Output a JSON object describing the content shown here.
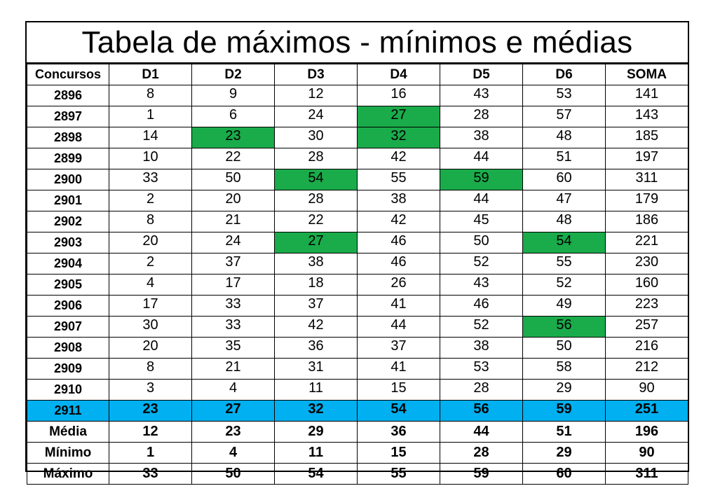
{
  "title": "Tabela de máximos - mínimos e médias",
  "colors": {
    "highlight_green": "#1aab4b",
    "current_row_blue": "#00b0f0"
  },
  "headers": [
    "Concursos",
    "D1",
    "D2",
    "D3",
    "D4",
    "D5",
    "D6",
    "SOMA"
  ],
  "rows": [
    {
      "concurso": "2896",
      "values": [
        "8",
        "9",
        "12",
        "16",
        "43",
        "53",
        "141"
      ],
      "highlight": []
    },
    {
      "concurso": "2897",
      "values": [
        "1",
        "6",
        "24",
        "27",
        "28",
        "57",
        "143"
      ],
      "highlight": [
        3
      ]
    },
    {
      "concurso": "2898",
      "values": [
        "14",
        "23",
        "30",
        "32",
        "38",
        "48",
        "185"
      ],
      "highlight": [
        1,
        3
      ]
    },
    {
      "concurso": "2899",
      "values": [
        "10",
        "22",
        "28",
        "42",
        "44",
        "51",
        "197"
      ],
      "highlight": []
    },
    {
      "concurso": "2900",
      "values": [
        "33",
        "50",
        "54",
        "55",
        "59",
        "60",
        "311"
      ],
      "highlight": [
        2,
        4
      ]
    },
    {
      "concurso": "2901",
      "values": [
        "2",
        "20",
        "28",
        "38",
        "44",
        "47",
        "179"
      ],
      "highlight": []
    },
    {
      "concurso": "2902",
      "values": [
        "8",
        "21",
        "22",
        "42",
        "45",
        "48",
        "186"
      ],
      "highlight": []
    },
    {
      "concurso": "2903",
      "values": [
        "20",
        "24",
        "27",
        "46",
        "50",
        "54",
        "221"
      ],
      "highlight": [
        2,
        5
      ]
    },
    {
      "concurso": "2904",
      "values": [
        "2",
        "37",
        "38",
        "46",
        "52",
        "55",
        "230"
      ],
      "highlight": []
    },
    {
      "concurso": "2905",
      "values": [
        "4",
        "17",
        "18",
        "26",
        "43",
        "52",
        "160"
      ],
      "highlight": []
    },
    {
      "concurso": "2906",
      "values": [
        "17",
        "33",
        "37",
        "41",
        "46",
        "49",
        "223"
      ],
      "highlight": []
    },
    {
      "concurso": "2907",
      "values": [
        "30",
        "33",
        "42",
        "44",
        "52",
        "56",
        "257"
      ],
      "highlight": [
        5
      ]
    },
    {
      "concurso": "2908",
      "values": [
        "20",
        "35",
        "36",
        "37",
        "38",
        "50",
        "216"
      ],
      "highlight": []
    },
    {
      "concurso": "2909",
      "values": [
        "8",
        "21",
        "31",
        "41",
        "53",
        "58",
        "212"
      ],
      "highlight": []
    },
    {
      "concurso": "2910",
      "values": [
        "3",
        "4",
        "11",
        "15",
        "28",
        "29",
        "90"
      ],
      "highlight": []
    },
    {
      "concurso": "2911",
      "values": [
        "23",
        "27",
        "32",
        "54",
        "56",
        "59",
        "251"
      ],
      "highlight": [],
      "current": true
    }
  ],
  "stats": [
    {
      "label": "Média",
      "values": [
        "12",
        "23",
        "29",
        "36",
        "44",
        "51",
        "196"
      ]
    },
    {
      "label": "Mínimo",
      "values": [
        "1",
        "4",
        "11",
        "15",
        "28",
        "29",
        "90"
      ]
    },
    {
      "label": "Máximo",
      "values": [
        "33",
        "50",
        "54",
        "55",
        "59",
        "60",
        "311"
      ]
    }
  ]
}
